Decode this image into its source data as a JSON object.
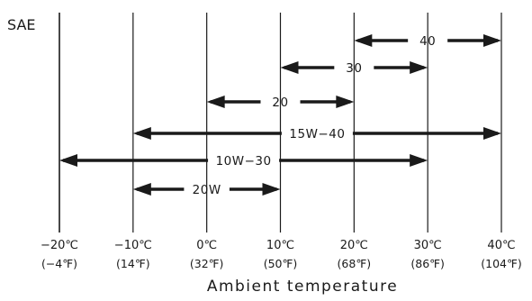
{
  "chart_data": {
    "type": "range",
    "ylabel": "SAE",
    "xlabel": "Ambient temperature",
    "x_ticks": [
      {
        "c": "−20℃",
        "f": "(−4℉)",
        "value": -20
      },
      {
        "c": "−10℃",
        "f": "(14℉)",
        "value": -10
      },
      {
        "c": "0℃",
        "f": "(32℉)",
        "value": 0
      },
      {
        "c": "10℃",
        "f": "(50℉)",
        "value": 10
      },
      {
        "c": "20℃",
        "f": "(68℉)",
        "value": 20
      },
      {
        "c": "30℃",
        "f": "(86℉)",
        "value": 30
      },
      {
        "c": "40℃",
        "f": "(104℉)",
        "value": 40
      }
    ],
    "xlim": [
      -20,
      40
    ],
    "ranges": [
      {
        "label": "40",
        "min": 20,
        "max": 40
      },
      {
        "label": "30",
        "min": 10,
        "max": 30
      },
      {
        "label": "20",
        "min": 0,
        "max": 20
      },
      {
        "label": "15W−40",
        "min": -10,
        "max": 40
      },
      {
        "label": "10W−30",
        "min": -20,
        "max": 30
      },
      {
        "label": "20W",
        "min": -10,
        "max": 10
      }
    ]
  }
}
